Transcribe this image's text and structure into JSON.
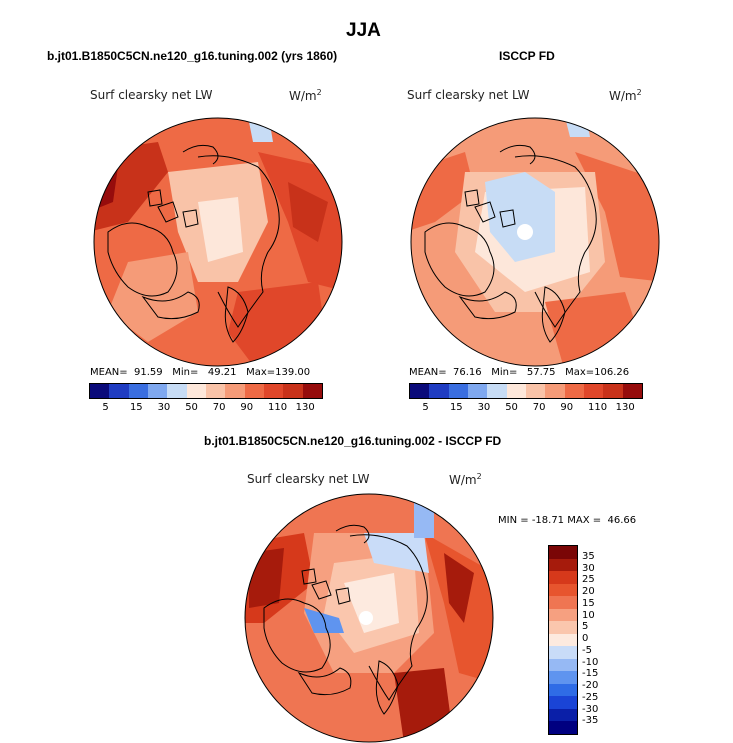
{
  "title": "JJA",
  "colors": {
    "scale_abs": [
      "#0a0a7a",
      "#1f3cc2",
      "#3a6ee0",
      "#7fa8ef",
      "#c7dcf5",
      "#fde7da",
      "#f9c3a8",
      "#f59b78",
      "#ee6a45",
      "#e0472a",
      "#c8321a",
      "#960c0c"
    ],
    "scale_diff": [
      "#000080",
      "#0a1fa8",
      "#1a44d6",
      "#2f6ce6",
      "#5f94ef",
      "#96b9f4",
      "#c9dcf8",
      "#fdeadf",
      "#fac6ad",
      "#f6a080",
      "#ef7552",
      "#e7552e",
      "#d6391b",
      "#a61b0c",
      "#7a0606"
    ],
    "land_outline": "#000000"
  },
  "chart_data": [
    {
      "type": "heatmap",
      "projection": "polar-stereographic north",
      "title": "b.jt01.B1850C5CN.ne120_g16.tuning.002 (yrs 1860)",
      "variable": "Surf clearsky net LW",
      "units": "W/m",
      "units_exp": "2",
      "stats": {
        "mean_label": "MEAN=",
        "mean": "91.59",
        "min_label": "Min=",
        "min": "49.21",
        "max_label": "Max=",
        "max": "139.00"
      },
      "colorbar_ticks": [
        "5",
        "15",
        "30",
        "50",
        "70",
        "90",
        "110",
        "130"
      ]
    },
    {
      "type": "heatmap",
      "projection": "polar-stereographic north",
      "title": "ISCCP FD",
      "variable": "Surf clearsky net LW",
      "units": "W/m",
      "units_exp": "2",
      "stats": {
        "mean_label": "MEAN=",
        "mean": "76.16",
        "min_label": "Min=",
        "min": "57.75",
        "max_label": "Max=",
        "max": "106.26"
      },
      "colorbar_ticks": [
        "5",
        "15",
        "30",
        "50",
        "70",
        "90",
        "110",
        "130"
      ]
    },
    {
      "type": "heatmap",
      "projection": "polar-stereographic north",
      "title": "b.jt01.B1850C5CN.ne120_g16.tuning.002 - ISCCP FD",
      "variable": "Surf clearsky net LW",
      "units": "W/m",
      "units_exp": "2",
      "stats": {
        "min_label": "MIN =",
        "min": "-18.71",
        "max_label": "MAX =",
        "max": "46.66"
      },
      "colorbar_ticks": [
        "35",
        "30",
        "25",
        "20",
        "15",
        "10",
        "5",
        "0",
        "-5",
        "-10",
        "-15",
        "-20",
        "-25",
        "-30",
        "-35"
      ]
    }
  ]
}
